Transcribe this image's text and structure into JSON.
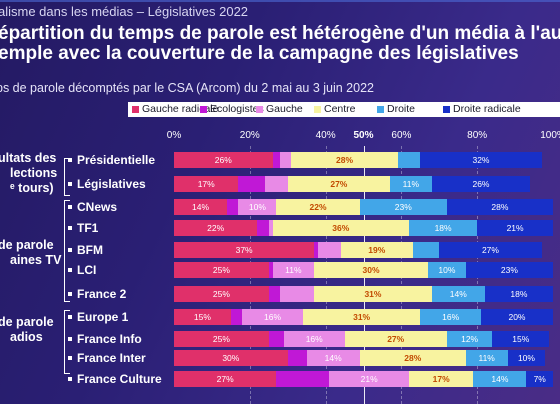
{
  "header": {
    "top_subtitle": "alisme dans les médias – Législatives 2022",
    "title_line1": "épartition du temps de parole est hétérogène d'un média à l'aut",
    "title_line2": "emple avec la couverture de la campagne des législatives",
    "subtitle": "ps de parole décomptés par le CSA (Arcom) du 2 mai au 3 juin 2022"
  },
  "groups": [
    {
      "lines": [
        "ultats des",
        "lections",
        "ᵉ tours)"
      ]
    },
    {
      "lines": [
        "de parole",
        "aines TV"
      ]
    },
    {
      "lines": [
        "de parole",
        "adios"
      ]
    }
  ],
  "colors": {
    "Gauche radicale": "#e0306a",
    "Ecologistes": "#c018d6",
    "Gauche": "#e88ae6",
    "Centre": "#f8f3a0",
    "Droite": "#42a6e8",
    "Droite radicale": "#1830c8"
  },
  "chart_data": {
    "type": "bar",
    "stacked": true,
    "orientation": "horizontal",
    "title": "",
    "xlim": [
      0,
      100
    ],
    "x_ticks": [
      "0%",
      "20%",
      "40%",
      "50%",
      "60%",
      "80%",
      "100%"
    ],
    "legend_position": "top",
    "series_names": [
      "Gauche radicale",
      "Ecologistes",
      "Gauche",
      "Centre",
      "Droite",
      "Droite radicale"
    ],
    "rows": [
      {
        "label": "Présidentielle",
        "values": [
          26,
          2,
          3,
          28,
          6,
          32
        ],
        "labels": [
          "26%",
          "",
          "",
          "28%",
          "",
          "32%"
        ]
      },
      {
        "label": "Législatives",
        "values": [
          17,
          7,
          6,
          27,
          11,
          26
        ],
        "labels": [
          "17%",
          "",
          "",
          "27%",
          "11%",
          "26%"
        ]
      },
      {
        "label": "CNews",
        "values": [
          14,
          3,
          10,
          22,
          23,
          28
        ],
        "labels": [
          "14%",
          "",
          "10%",
          "22%",
          "23%",
          "28%"
        ]
      },
      {
        "label": "TF1",
        "values": [
          22,
          3,
          1,
          36,
          18,
          21
        ],
        "labels": [
          "22%",
          "",
          "",
          "36%",
          "18%",
          "21%"
        ]
      },
      {
        "label": "BFM",
        "values": [
          37,
          1,
          6,
          19,
          7,
          27
        ],
        "labels": [
          "37%",
          "",
          "",
          "19%",
          "",
          "27%"
        ]
      },
      {
        "label": "LCI",
        "values": [
          25,
          1,
          11,
          30,
          10,
          23
        ],
        "labels": [
          "25%",
          "",
          "11%",
          "30%",
          "10%",
          "23%"
        ]
      },
      {
        "label": "France 2",
        "values": [
          25,
          3,
          9,
          31,
          14,
          18
        ],
        "labels": [
          "25%",
          "",
          "",
          "31%",
          "14%",
          "18%"
        ]
      },
      {
        "label": "Europe 1",
        "values": [
          15,
          3,
          16,
          31,
          16,
          20
        ],
        "labels": [
          "15%",
          "",
          "16%",
          "31%",
          "16%",
          "20%"
        ]
      },
      {
        "label": "France Info",
        "values": [
          25,
          4,
          16,
          27,
          12,
          15
        ],
        "labels": [
          "25%",
          "",
          "16%",
          "27%",
          "12%",
          "15%"
        ]
      },
      {
        "label": "France Inter",
        "values": [
          30,
          5,
          14,
          28,
          11,
          10
        ],
        "labels": [
          "30%",
          "",
          "14%",
          "28%",
          "11%",
          "10%"
        ]
      },
      {
        "label": "France Culture",
        "values": [
          27,
          14,
          21,
          17,
          14,
          7
        ],
        "labels": [
          "27%",
          "",
          "21%",
          "17%",
          "14%",
          "7%"
        ]
      }
    ]
  }
}
